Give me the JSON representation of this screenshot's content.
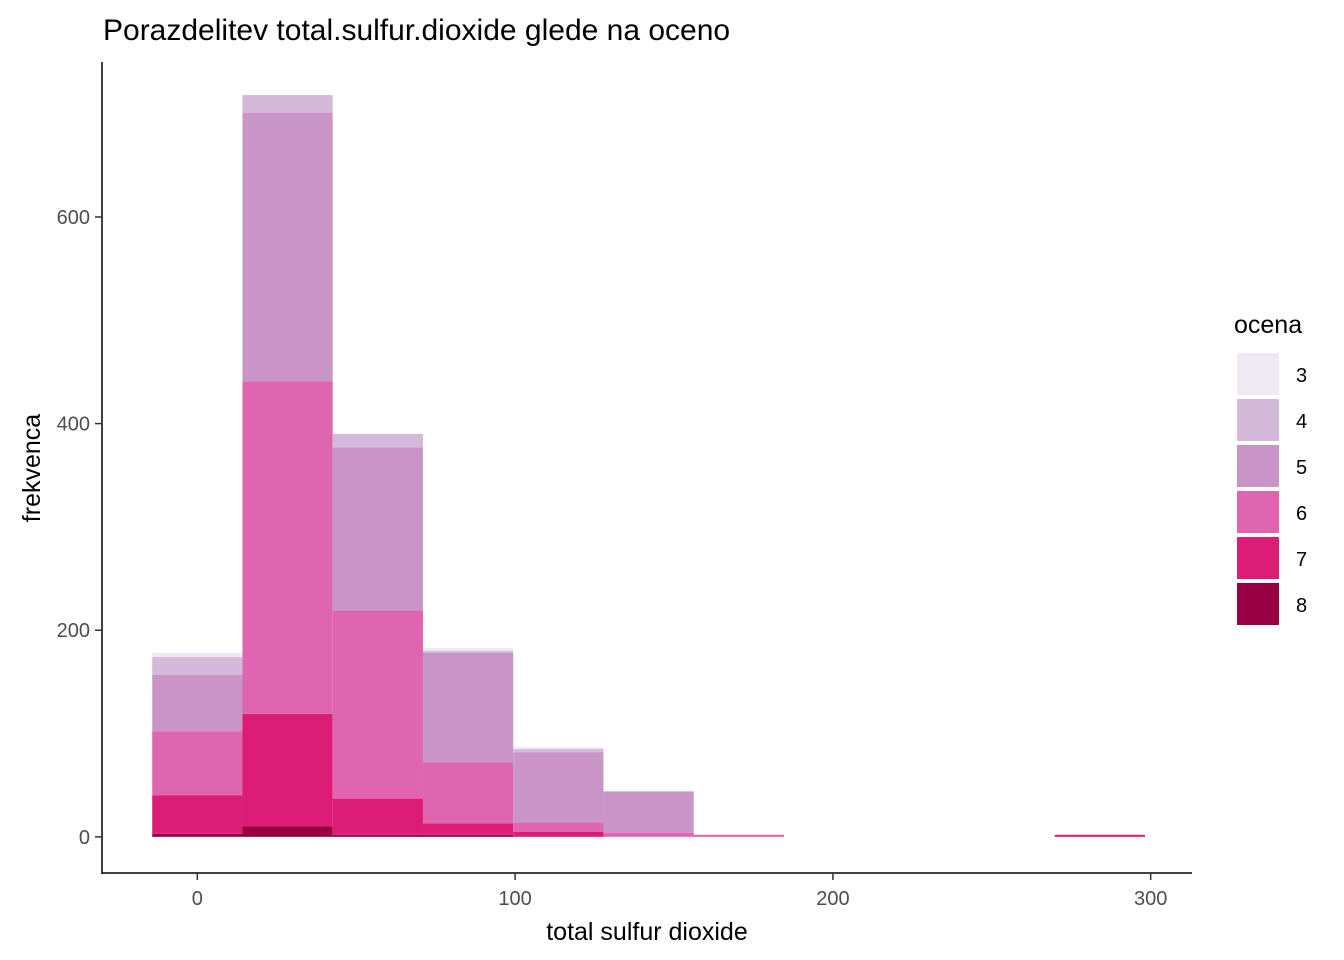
{
  "chart_data": {
    "type": "bar",
    "title": "Porazdelitev total.sulfur.dioxide glede na oceno",
    "xlabel": "total sulfur dioxide",
    "ylabel": "frekvenca",
    "xlim": [
      -30,
      313
    ],
    "ylim": [
      -35,
      750
    ],
    "x_ticks": [
      0,
      100,
      200,
      300
    ],
    "y_ticks": [
      0,
      200,
      400,
      600
    ],
    "grid": false,
    "legend": {
      "title": "ocena",
      "placement": "right"
    },
    "bin_edges": [
      -14.2,
      14.2,
      42.6,
      71.0,
      99.4,
      127.8,
      156.2,
      184.6,
      213.0,
      241.4,
      269.8,
      298.2
    ],
    "stack_order": [
      "8",
      "7",
      "6",
      "5",
      "4",
      "3"
    ],
    "series": [
      {
        "name": "3",
        "color": "#efe9f3",
        "values": [
          4,
          0,
          0,
          3,
          2,
          0,
          0,
          0,
          0,
          0,
          0
        ]
      },
      {
        "name": "4",
        "color": "#d4b9da",
        "values": [
          17,
          17,
          13,
          2,
          3,
          0,
          0,
          0,
          0,
          0,
          0
        ]
      },
      {
        "name": "5",
        "color": "#c994c7",
        "values": [
          55,
          260,
          158,
          106,
          68,
          40,
          0,
          0,
          0,
          0,
          0
        ]
      },
      {
        "name": "6",
        "color": "#df65b0",
        "values": [
          62,
          322,
          182,
          59,
          9,
          4,
          2,
          0,
          0,
          0,
          0
        ]
      },
      {
        "name": "7",
        "color": "#dd1c77",
        "values": [
          37,
          109,
          35,
          11,
          5,
          0,
          0,
          0,
          0,
          0,
          2
        ]
      },
      {
        "name": "8",
        "color": "#980043",
        "values": [
          3,
          10,
          2,
          2,
          0,
          0,
          0,
          0,
          0,
          0,
          0
        ]
      }
    ]
  }
}
